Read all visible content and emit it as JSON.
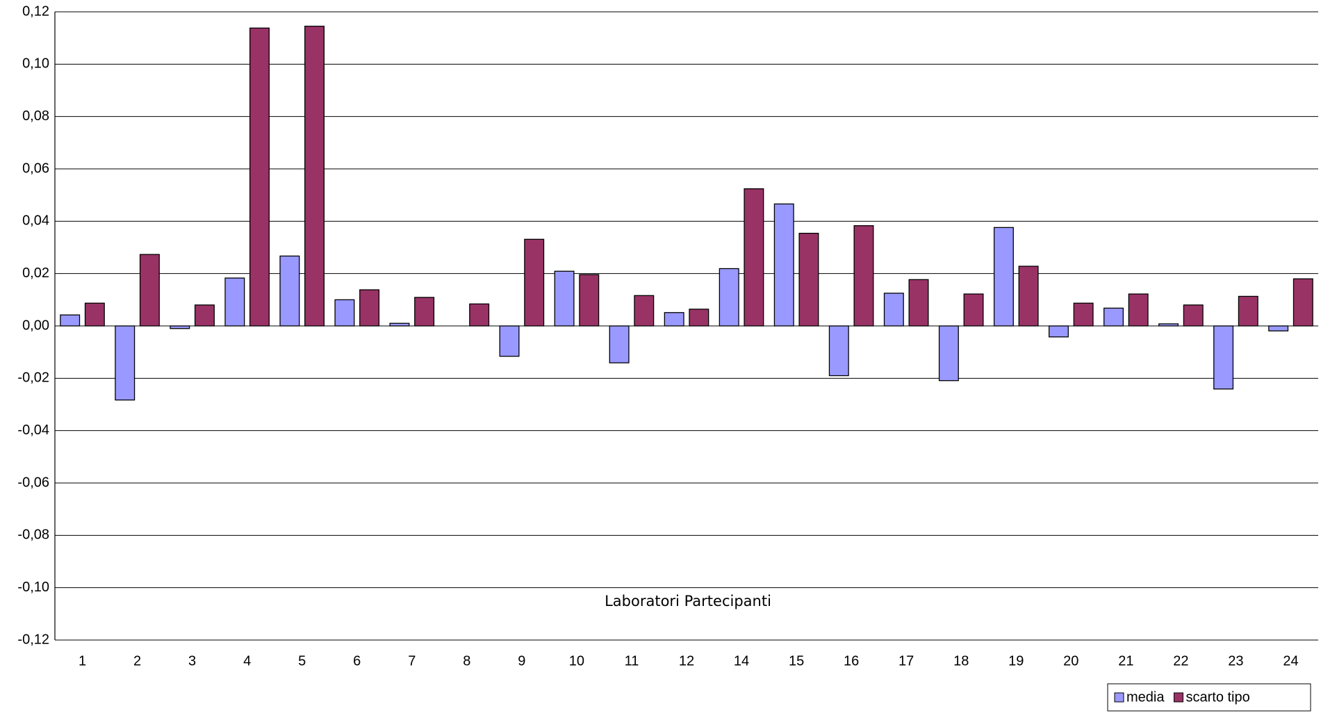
{
  "chart_data": {
    "type": "bar",
    "x_label": "Laboratori Partecipanti",
    "categories": [
      "1",
      "2",
      "3",
      "4",
      "5",
      "6",
      "7",
      "8",
      "9",
      "10",
      "11",
      "12",
      "14",
      "15",
      "16",
      "17",
      "18",
      "19",
      "20",
      "21",
      "22",
      "23",
      "24"
    ],
    "series": [
      {
        "name": "media",
        "color": "#9999ff",
        "values": [
          0.0042,
          -0.0283,
          -0.001,
          0.0183,
          0.0267,
          0.01,
          0.001,
          null,
          -0.0116,
          0.0209,
          -0.0141,
          0.0051,
          0.0219,
          0.0466,
          -0.019,
          0.0125,
          -0.0209,
          0.0376,
          -0.0042,
          0.0068,
          0.0008,
          -0.0241,
          -0.0019
        ]
      },
      {
        "name": "scarto tipo",
        "color": "#993366",
        "values": [
          0.0087,
          0.0273,
          0.008,
          0.1138,
          0.1145,
          0.0138,
          0.0109,
          0.0084,
          0.0331,
          0.0196,
          0.0116,
          0.0064,
          0.0524,
          0.0354,
          0.0383,
          0.0177,
          0.0122,
          0.0228,
          0.0087,
          0.0122,
          0.008,
          0.0113,
          0.018
        ]
      }
    ],
    "ylim": [
      -0.12,
      0.12
    ],
    "yticks": [
      {
        "value": -0.12,
        "label": "-0,12"
      },
      {
        "value": -0.1,
        "label": "-0,10"
      },
      {
        "value": -0.08,
        "label": "-0,08"
      },
      {
        "value": -0.06,
        "label": "-0,06"
      },
      {
        "value": -0.04,
        "label": "-0,04"
      },
      {
        "value": -0.02,
        "label": "-0,02"
      },
      {
        "value": 0,
        "label": "0,00"
      },
      {
        "value": 0.02,
        "label": "0,02"
      },
      {
        "value": 0.04,
        "label": "0,04"
      },
      {
        "value": 0.06,
        "label": "0,06"
      },
      {
        "value": 0.08,
        "label": "0,08"
      },
      {
        "value": 0.1,
        "label": "0,10"
      },
      {
        "value": 0.12,
        "label": "0,12"
      }
    ],
    "grid": true,
    "legend": "bottom-right"
  }
}
